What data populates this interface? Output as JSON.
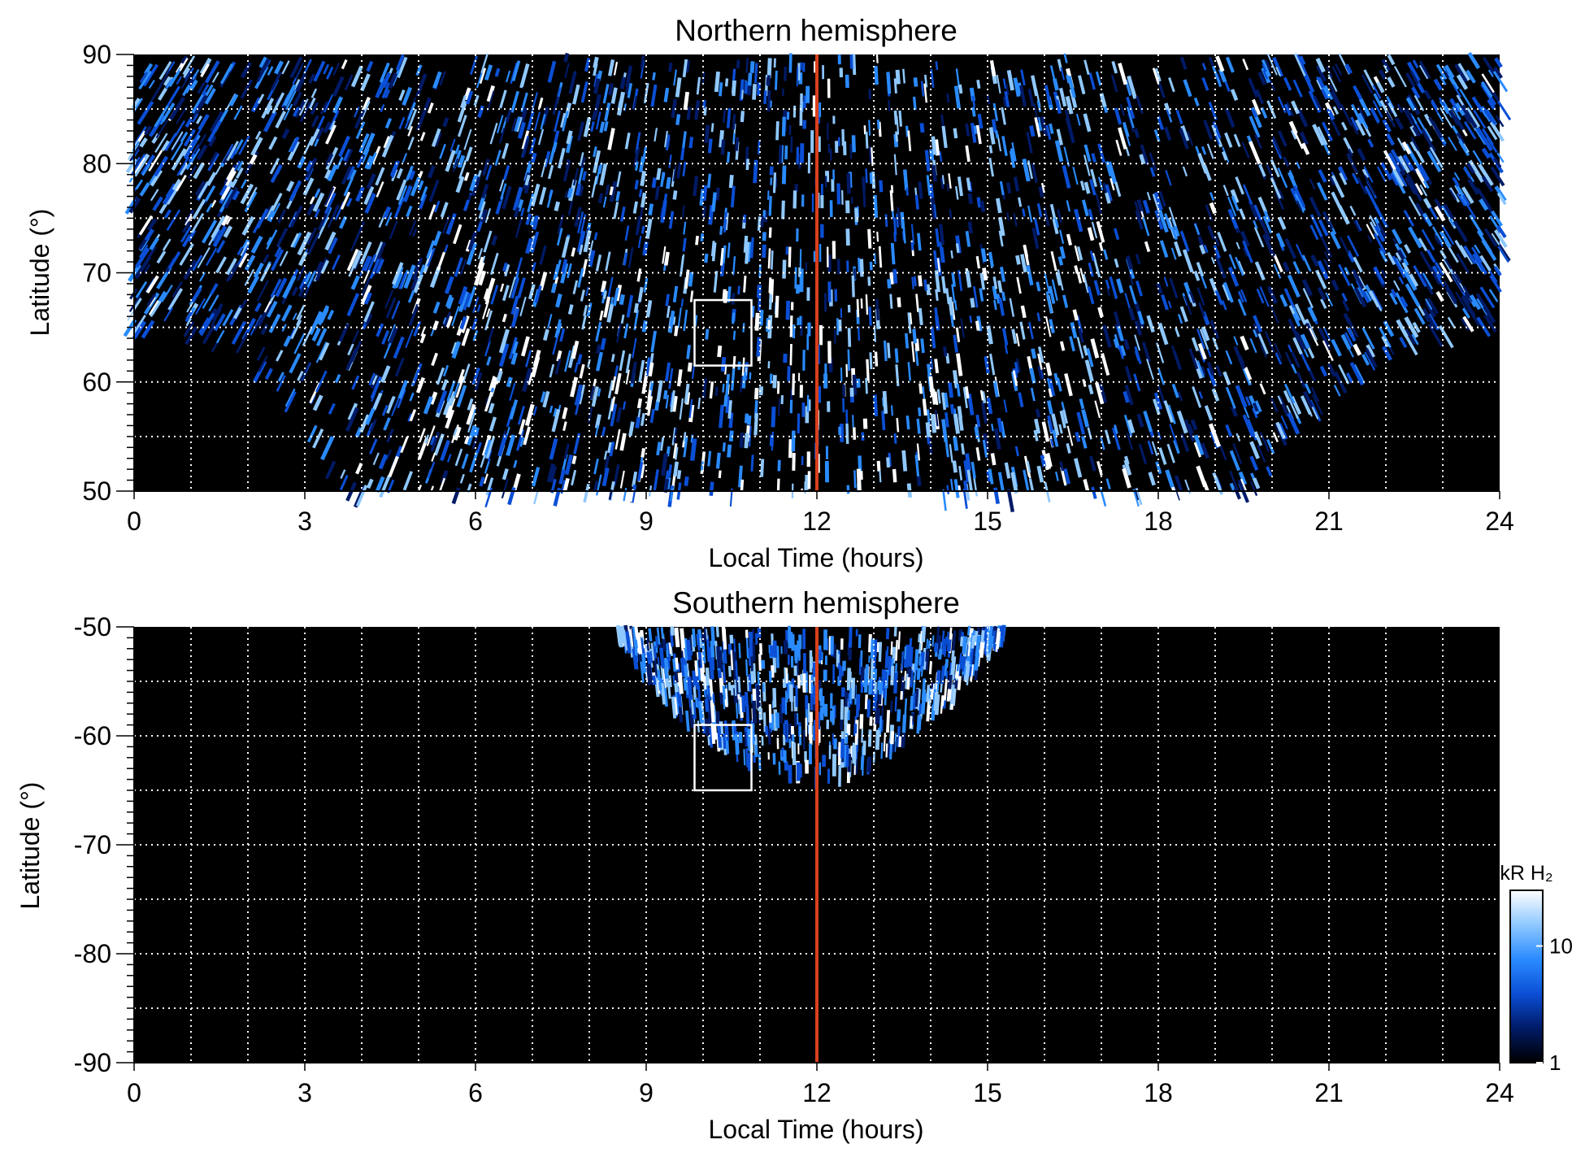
{
  "figure": {
    "colorbar": {
      "unit": "kR H₂",
      "ticks": [
        {
          "value": 10,
          "label": "10"
        },
        {
          "value": 1,
          "label": "1"
        }
      ],
      "colors": [
        "#000000",
        "#001a66",
        "#0b4fd6",
        "#2a8bff",
        "#8fc8ff",
        "#ffffff"
      ]
    },
    "reference_line": {
      "x": 12,
      "color": "#d8401c"
    }
  },
  "chart_data": [
    {
      "type": "heatmap",
      "title": "Northern hemisphere",
      "xlabel": "Local Time (hours)",
      "ylabel": "Latitude (°)",
      "xlim": [
        0,
        24
      ],
      "ylim": [
        50,
        90
      ],
      "xticks": [
        {
          "value": 0,
          "label": "0"
        },
        {
          "value": 3,
          "label": "3"
        },
        {
          "value": 6,
          "label": "6"
        },
        {
          "value": 9,
          "label": "9"
        },
        {
          "value": 12,
          "label": "12"
        },
        {
          "value": 15,
          "label": "15"
        },
        {
          "value": 18,
          "label": "18"
        },
        {
          "value": 21,
          "label": "21"
        },
        {
          "value": 24,
          "label": "24"
        }
      ],
      "yticks": [
        {
          "value": 50,
          "label": "50"
        },
        {
          "value": 60,
          "label": "60"
        },
        {
          "value": 70,
          "label": "70"
        },
        {
          "value": 80,
          "label": "80"
        },
        {
          "value": 90,
          "label": "90"
        }
      ],
      "grid": "dotted white, every 1 hour and every 5 degrees",
      "colorscale": "log, 1 to ~30 kR H₂",
      "box": {
        "x": [
          9.85,
          10.85
        ],
        "y": [
          61.5,
          67.5
        ]
      },
      "reference_line_x": 12,
      "coverage_lower_boundary_lat": [
        [
          0,
          65
        ],
        [
          1,
          65
        ],
        [
          2,
          63
        ],
        [
          3,
          58
        ],
        [
          3.5,
          52
        ],
        [
          4,
          50
        ],
        [
          5,
          50
        ],
        [
          18.7,
          50
        ],
        [
          19.5,
          50
        ],
        [
          20,
          52
        ],
        [
          20.8,
          58
        ],
        [
          22,
          63
        ],
        [
          23,
          65
        ],
        [
          24,
          66
        ]
      ]
    },
    {
      "type": "heatmap",
      "title": "Southern hemisphere",
      "xlabel": "Local Time (hours)",
      "ylabel": "Latitude (°)",
      "xlim": [
        0,
        24
      ],
      "ylim": [
        -90,
        -50
      ],
      "xticks": [
        {
          "value": 0,
          "label": "0"
        },
        {
          "value": 3,
          "label": "3"
        },
        {
          "value": 6,
          "label": "6"
        },
        {
          "value": 9,
          "label": "9"
        },
        {
          "value": 12,
          "label": "12"
        },
        {
          "value": 15,
          "label": "15"
        },
        {
          "value": 18,
          "label": "18"
        },
        {
          "value": 21,
          "label": "21"
        },
        {
          "value": 24,
          "label": "24"
        }
      ],
      "yticks": [
        {
          "value": -50,
          "label": "-50"
        },
        {
          "value": -60,
          "label": "-60"
        },
        {
          "value": -70,
          "label": "-70"
        },
        {
          "value": -80,
          "label": "-80"
        },
        {
          "value": -90,
          "label": "-90"
        }
      ],
      "grid": "dotted white, every 1 hour and every 5 degrees",
      "colorscale": "log, 1 to ~30 kR H₂",
      "box": {
        "x": [
          9.85,
          10.85
        ],
        "y": [
          -65,
          -59
        ]
      },
      "reference_line_x": 12,
      "coverage_lower_boundary_lat": [
        [
          8.5,
          -50
        ],
        [
          9.0,
          -54
        ],
        [
          9.7,
          -58
        ],
        [
          10.5,
          -61
        ],
        [
          11.3,
          -63
        ],
        [
          12.0,
          -63.5
        ],
        [
          12.8,
          -62.5
        ],
        [
          13.6,
          -60
        ],
        [
          14.4,
          -56
        ],
        [
          15.0,
          -52
        ],
        [
          15.3,
          -50
        ]
      ]
    }
  ]
}
